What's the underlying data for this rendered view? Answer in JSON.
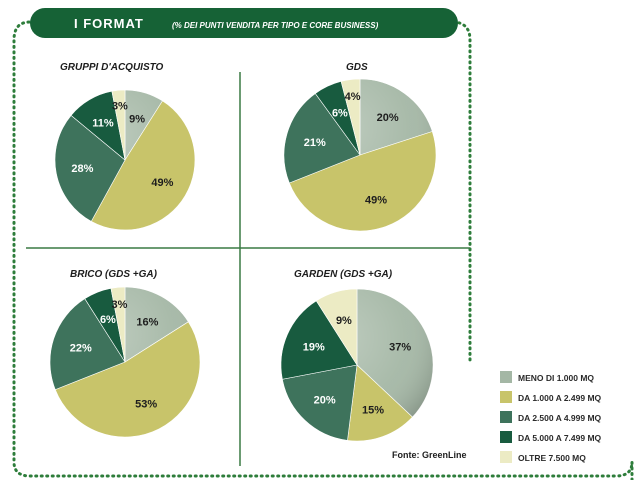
{
  "header": {
    "title": "I FORMAT",
    "subtitle": "(% DEI PUNTI VENDITA PER TIPO E CORE BUSINESS)"
  },
  "colors": {
    "accent_green": "#166236",
    "frame": "#2e7d3b",
    "divider": "#3a7a44"
  },
  "categories": [
    "MENO DI 1.000 MQ",
    "DA 1.000 A 2.499 MQ",
    "DA 2.500 A 4.999 MQ",
    "DA 5.000 A 7.499 MQ",
    "OLTRE 7.500 MQ"
  ],
  "legend": [
    {
      "label": "MENO DI 1.000 MQ",
      "color": "#a4b7a5"
    },
    {
      "label": "DA 1.000 A 2.499 MQ",
      "color": "#c8c46a"
    },
    {
      "label": "DA 2.500 A 4.999 MQ",
      "color": "#3e735c"
    },
    {
      "label": "DA 5.000 A 7.499 MQ",
      "color": "#185b3f"
    },
    {
      "label": "OLTRE 7.500 MQ",
      "color": "#ecebc4"
    }
  ],
  "source": "Fonte: GreenLine",
  "chart_data": [
    {
      "type": "pie",
      "title": "GRUPPI D'ACQUISTO",
      "values": [
        9,
        49,
        28,
        11,
        3
      ]
    },
    {
      "type": "pie",
      "title": "GDS",
      "values": [
        20,
        49,
        21,
        6,
        4
      ]
    },
    {
      "type": "pie",
      "title": "BRICO (GDS +GA)",
      "values": [
        16,
        53,
        22,
        6,
        3
      ]
    },
    {
      "type": "pie",
      "title": "GARDEN (GDS +GA)",
      "values": [
        37,
        15,
        20,
        19,
        9
      ]
    }
  ]
}
